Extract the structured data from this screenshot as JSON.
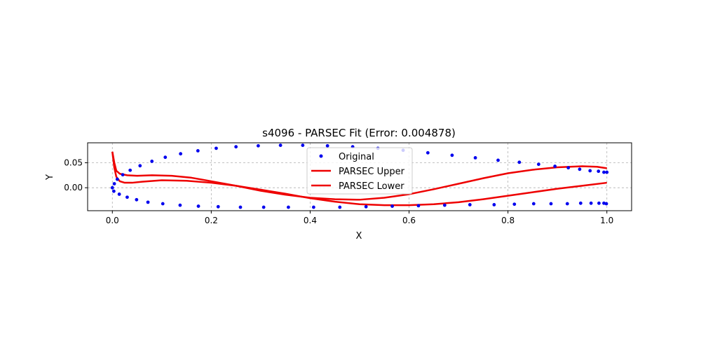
{
  "chart_data": {
    "type": "line",
    "title": "s4096 - PARSEC Fit (Error: 0.004878)",
    "xlabel": "X",
    "ylabel": "Y",
    "xlim": [
      -0.05,
      1.05
    ],
    "ylim": [
      -0.046,
      0.09
    ],
    "xticks": [
      0.0,
      0.2,
      0.4,
      0.6,
      0.8,
      1.0
    ],
    "xtick_labels": [
      "0.0",
      "0.2",
      "0.4",
      "0.6",
      "0.8",
      "1.0"
    ],
    "yticks": [
      0.0,
      0.05
    ],
    "ytick_labels": [
      "0.00",
      "0.05"
    ],
    "grid": true,
    "legend_position": "upper-center",
    "series": [
      {
        "name": "Original",
        "kind": "scatter",
        "color": "#0000ee",
        "points": [
          [
            1.0,
            0.031
          ],
          [
            0.994,
            0.031
          ],
          [
            0.983,
            0.033
          ],
          [
            0.966,
            0.034
          ],
          [
            0.945,
            0.037
          ],
          [
            0.922,
            0.04
          ],
          [
            0.895,
            0.043
          ],
          [
            0.862,
            0.047
          ],
          [
            0.823,
            0.051
          ],
          [
            0.78,
            0.055
          ],
          [
            0.734,
            0.06
          ],
          [
            0.687,
            0.065
          ],
          [
            0.638,
            0.07
          ],
          [
            0.588,
            0.075
          ],
          [
            0.537,
            0.079
          ],
          [
            0.486,
            0.082
          ],
          [
            0.435,
            0.084
          ],
          [
            0.385,
            0.085
          ],
          [
            0.34,
            0.085
          ],
          [
            0.295,
            0.084
          ],
          [
            0.25,
            0.082
          ],
          [
            0.21,
            0.079
          ],
          [
            0.173,
            0.074
          ],
          [
            0.138,
            0.068
          ],
          [
            0.107,
            0.061
          ],
          [
            0.08,
            0.053
          ],
          [
            0.056,
            0.044
          ],
          [
            0.036,
            0.035
          ],
          [
            0.021,
            0.026
          ],
          [
            0.01,
            0.017
          ],
          [
            0.004,
            0.008
          ],
          [
            0.0,
            0.0
          ],
          [
            0.003,
            -0.007
          ],
          [
            0.014,
            -0.013
          ],
          [
            0.03,
            -0.019
          ],
          [
            0.049,
            -0.024
          ],
          [
            0.072,
            -0.029
          ],
          [
            0.102,
            -0.032
          ],
          [
            0.137,
            -0.035
          ],
          [
            0.174,
            -0.037
          ],
          [
            0.214,
            -0.038
          ],
          [
            0.259,
            -0.039
          ],
          [
            0.306,
            -0.039
          ],
          [
            0.356,
            -0.039
          ],
          [
            0.407,
            -0.039
          ],
          [
            0.46,
            -0.039
          ],
          [
            0.513,
            -0.038
          ],
          [
            0.566,
            -0.037
          ],
          [
            0.619,
            -0.036
          ],
          [
            0.672,
            -0.035
          ],
          [
            0.723,
            -0.034
          ],
          [
            0.772,
            -0.034
          ],
          [
            0.813,
            -0.033
          ],
          [
            0.852,
            -0.032
          ],
          [
            0.887,
            -0.032
          ],
          [
            0.92,
            -0.032
          ],
          [
            0.947,
            -0.031
          ],
          [
            0.968,
            -0.031
          ],
          [
            0.984,
            -0.031
          ],
          [
            0.994,
            -0.031
          ],
          [
            0.999,
            -0.032
          ]
        ]
      },
      {
        "name": "PARSEC Upper",
        "kind": "line",
        "color": "#ee0000",
        "points": [
          [
            0.0,
            0.072
          ],
          [
            0.004,
            0.05
          ],
          [
            0.008,
            0.034
          ],
          [
            0.015,
            0.028
          ],
          [
            0.03,
            0.025
          ],
          [
            0.05,
            0.024
          ],
          [
            0.08,
            0.025
          ],
          [
            0.12,
            0.024
          ],
          [
            0.16,
            0.02
          ],
          [
            0.2,
            0.013
          ],
          [
            0.25,
            0.004
          ],
          [
            0.3,
            -0.006
          ],
          [
            0.35,
            -0.014
          ],
          [
            0.4,
            -0.02
          ],
          [
            0.45,
            -0.023
          ],
          [
            0.5,
            -0.024
          ],
          [
            0.55,
            -0.02
          ],
          [
            0.6,
            -0.013
          ],
          [
            0.65,
            -0.003
          ],
          [
            0.7,
            0.008
          ],
          [
            0.75,
            0.019
          ],
          [
            0.8,
            0.029
          ],
          [
            0.85,
            0.036
          ],
          [
            0.9,
            0.041
          ],
          [
            0.95,
            0.043
          ],
          [
            0.98,
            0.042
          ],
          [
            1.0,
            0.039
          ]
        ]
      },
      {
        "name": "PARSEC Lower",
        "kind": "line",
        "color": "#ee0000",
        "points": [
          [
            0.0,
            0.072
          ],
          [
            0.004,
            0.04
          ],
          [
            0.008,
            0.022
          ],
          [
            0.015,
            0.013
          ],
          [
            0.025,
            0.01
          ],
          [
            0.04,
            0.01
          ],
          [
            0.06,
            0.012
          ],
          [
            0.1,
            0.015
          ],
          [
            0.15,
            0.014
          ],
          [
            0.2,
            0.01
          ],
          [
            0.25,
            0.004
          ],
          [
            0.3,
            -0.004
          ],
          [
            0.35,
            -0.012
          ],
          [
            0.4,
            -0.021
          ],
          [
            0.45,
            -0.028
          ],
          [
            0.5,
            -0.033
          ],
          [
            0.55,
            -0.035
          ],
          [
            0.6,
            -0.035
          ],
          [
            0.65,
            -0.033
          ],
          [
            0.7,
            -0.029
          ],
          [
            0.75,
            -0.023
          ],
          [
            0.8,
            -0.016
          ],
          [
            0.85,
            -0.009
          ],
          [
            0.9,
            -0.002
          ],
          [
            0.95,
            0.004
          ],
          [
            1.0,
            0.01
          ]
        ]
      }
    ]
  }
}
